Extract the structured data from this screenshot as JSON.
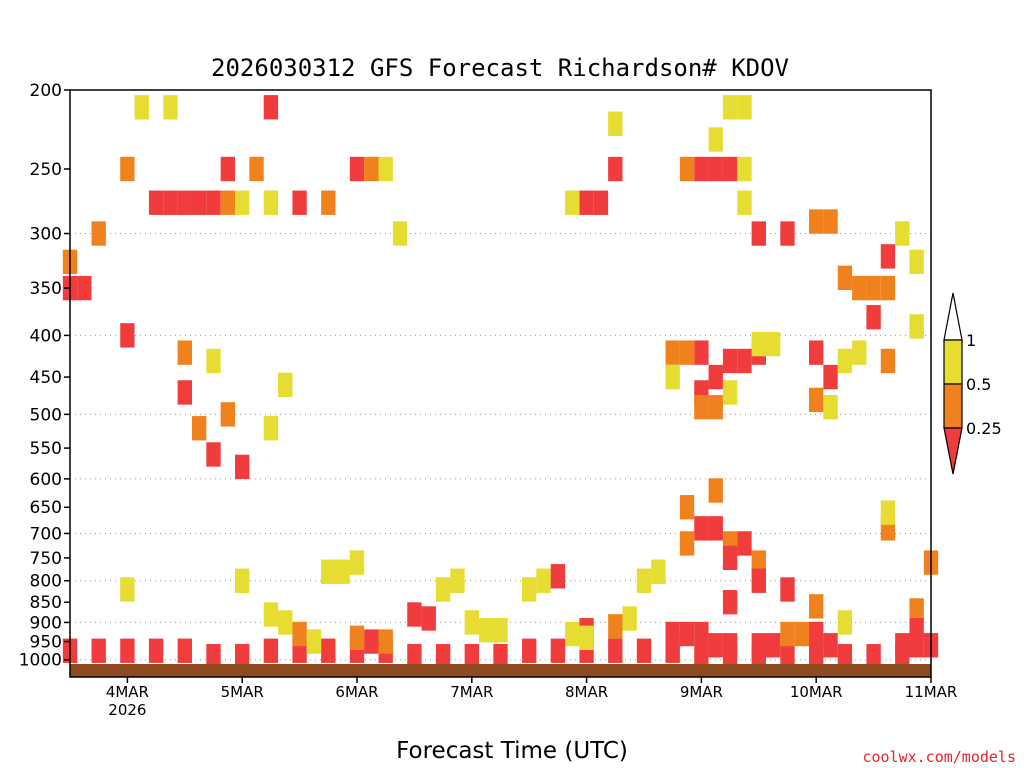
{
  "page": {
    "title": "2026030312 GFS Forecast Richardson# KDOV",
    "xlabel": "Forecast Time (UTC)",
    "credit": "coolwx.com/models"
  },
  "chart_data": {
    "type": "heatmap",
    "title": "2026030312 GFS Forecast Richardson# KDOV",
    "xlabel": "Forecast Time (UTC)",
    "ylabel": "",
    "y_scale": "log",
    "y_inverted": true,
    "ylim": [
      1050,
      200
    ],
    "xlim": [
      "2026-03-03T12Z",
      "2026-03-11T00Z"
    ],
    "x_ticks": [
      {
        "value": "2026-03-04T00Z",
        "label": "4MAR",
        "sublabel": "2026"
      },
      {
        "value": "2026-03-05T00Z",
        "label": "5MAR"
      },
      {
        "value": "2026-03-06T00Z",
        "label": "6MAR"
      },
      {
        "value": "2026-03-07T00Z",
        "label": "7MAR"
      },
      {
        "value": "2026-03-08T00Z",
        "label": "8MAR"
      },
      {
        "value": "2026-03-09T00Z",
        "label": "9MAR"
      },
      {
        "value": "2026-03-10T00Z",
        "label": "10MAR"
      },
      {
        "value": "2026-03-11T00Z",
        "label": "11MAR"
      }
    ],
    "y_ticks": [
      200,
      250,
      300,
      350,
      400,
      450,
      500,
      550,
      600,
      650,
      700,
      750,
      800,
      850,
      900,
      950,
      1000
    ],
    "y_gridlines": [
      300,
      400,
      500,
      600,
      700,
      800,
      900,
      1000
    ],
    "grid": "dotted horizontal",
    "legend": {
      "position": "right",
      "labels": [
        "1",
        "0.5",
        "0.25"
      ],
      "bins": [
        {
          "range": "0.5–1",
          "color": "#e6dc32"
        },
        {
          "range": "0.25–0.5",
          "color": "#f0821e"
        },
        {
          "range": "<0.25",
          "color": "#f03c3c"
        }
      ]
    },
    "colors": {
      "low": "#f03c3c",
      "mid": "#f0821e",
      "high": "#e6dc32",
      "ground": "#8c4a1e"
    },
    "cells": [
      [
        "2026-03-03T12Z",
        975,
        1
      ],
      [
        "2026-03-03T18Z",
        975,
        1
      ],
      [
        "2026-03-04T00Z",
        975,
        1
      ],
      [
        "2026-03-04T06Z",
        975,
        1
      ],
      [
        "2026-03-04T12Z",
        975,
        1
      ],
      [
        "2026-03-04T18Z",
        990,
        1
      ],
      [
        "2026-03-05T00Z",
        990,
        1
      ],
      [
        "2026-03-05T06Z",
        975,
        1
      ],
      [
        "2026-03-05T12Z",
        975,
        1
      ],
      [
        "2026-03-05T18Z",
        975,
        1
      ],
      [
        "2026-03-06T00Z",
        975,
        1
      ],
      [
        "2026-03-06T06Z",
        975,
        1
      ],
      [
        "2026-03-06T12Z",
        990,
        1
      ],
      [
        "2026-03-06T18Z",
        990,
        1
      ],
      [
        "2026-03-07T00Z",
        990,
        1
      ],
      [
        "2026-03-07T06Z",
        990,
        1
      ],
      [
        "2026-03-07T12Z",
        975,
        1
      ],
      [
        "2026-03-07T18Z",
        975,
        1
      ],
      [
        "2026-03-08T00Z",
        975,
        1
      ],
      [
        "2026-03-08T06Z",
        975,
        1
      ],
      [
        "2026-03-08T12Z",
        975,
        1
      ],
      [
        "2026-03-08T18Z",
        975,
        1
      ],
      [
        "2026-03-09T00Z",
        990,
        1
      ],
      [
        "2026-03-09T06Z",
        990,
        1
      ],
      [
        "2026-03-09T12Z",
        990,
        1
      ],
      [
        "2026-03-09T18Z",
        990,
        1
      ],
      [
        "2026-03-10T00Z",
        990,
        1
      ],
      [
        "2026-03-10T06Z",
        990,
        1
      ],
      [
        "2026-03-10T12Z",
        990,
        1
      ],
      [
        "2026-03-10T18Z",
        990,
        1
      ],
      [
        "2026-03-03T12Z",
        350,
        1
      ],
      [
        "2026-03-03T15Z",
        350,
        1
      ],
      [
        "2026-03-03T12Z",
        325,
        2
      ],
      [
        "2026-03-03T18Z",
        300,
        2
      ],
      [
        "2026-03-04T00Z",
        400,
        1
      ],
      [
        "2026-03-04T00Z",
        250,
        2
      ],
      [
        "2026-03-04T06Z",
        275,
        1
      ],
      [
        "2026-03-04T09Z",
        275,
        1
      ],
      [
        "2026-03-04T12Z",
        275,
        1
      ],
      [
        "2026-03-04T15Z",
        275,
        1
      ],
      [
        "2026-03-04T18Z",
        275,
        1
      ],
      [
        "2026-03-04T21Z",
        250,
        1
      ],
      [
        "2026-03-04T21Z",
        275,
        2
      ],
      [
        "2026-03-05T00Z",
        275,
        3
      ],
      [
        "2026-03-05T03Z",
        250,
        2
      ],
      [
        "2026-03-05T06Z",
        275,
        3
      ],
      [
        "2026-03-04T03Z",
        210,
        3
      ],
      [
        "2026-03-04T09Z",
        210,
        3
      ],
      [
        "2026-03-05T06Z",
        210,
        1
      ],
      [
        "2026-03-04T12Z",
        470,
        1
      ],
      [
        "2026-03-04T15Z",
        520,
        2
      ],
      [
        "2026-03-04T18Z",
        560,
        1
      ],
      [
        "2026-03-04T21Z",
        500,
        2
      ],
      [
        "2026-03-05T00Z",
        580,
        1
      ],
      [
        "2026-03-04T12Z",
        420,
        2
      ],
      [
        "2026-03-05T06Z",
        520,
        3
      ],
      [
        "2026-03-05T09Z",
        460,
        3
      ],
      [
        "2026-03-04T18Z",
        430,
        3
      ],
      [
        "2026-03-06T00Z",
        250,
        1
      ],
      [
        "2026-03-06T03Z",
        250,
        2
      ],
      [
        "2026-03-06T06Z",
        250,
        3
      ],
      [
        "2026-03-06T09Z",
        300,
        3
      ],
      [
        "2026-03-05T18Z",
        275,
        2
      ],
      [
        "2026-03-05T12Z",
        275,
        1
      ],
      [
        "2026-03-08T00Z",
        275,
        1
      ],
      [
        "2026-03-08T03Z",
        275,
        1
      ],
      [
        "2026-03-08T06Z",
        250,
        1
      ],
      [
        "2026-03-08T06Z",
        220,
        3
      ],
      [
        "2026-03-07T21Z",
        275,
        3
      ],
      [
        "2026-03-09T00Z",
        250,
        1
      ],
      [
        "2026-03-09T03Z",
        250,
        1
      ],
      [
        "2026-03-09T06Z",
        250,
        1
      ],
      [
        "2026-03-08T21Z",
        250,
        2
      ],
      [
        "2026-03-09T09Z",
        250,
        3
      ],
      [
        "2026-03-09T09Z",
        275,
        3
      ],
      [
        "2026-03-09T03Z",
        230,
        3
      ],
      [
        "2026-03-09T06Z",
        210,
        3
      ],
      [
        "2026-03-09T09Z",
        210,
        3
      ],
      [
        "2026-03-09T12Z",
        300,
        1
      ],
      [
        "2026-03-09T18Z",
        300,
        1
      ],
      [
        "2026-03-10T00Z",
        290,
        2
      ],
      [
        "2026-03-10T03Z",
        290,
        2
      ],
      [
        "2026-03-10T06Z",
        340,
        2
      ],
      [
        "2026-03-10T09Z",
        350,
        2
      ],
      [
        "2026-03-10T12Z",
        350,
        2
      ],
      [
        "2026-03-10T15Z",
        350,
        2
      ],
      [
        "2026-03-10T12Z",
        380,
        1
      ],
      [
        "2026-03-10T15Z",
        320,
        1
      ],
      [
        "2026-03-10T18Z",
        300,
        3
      ],
      [
        "2026-03-10T21Z",
        325,
        3
      ],
      [
        "2026-03-09T00Z",
        420,
        1
      ],
      [
        "2026-03-09T03Z",
        450,
        1
      ],
      [
        "2026-03-09T06Z",
        430,
        1
      ],
      [
        "2026-03-09T09Z",
        430,
        1
      ],
      [
        "2026-03-09T12Z",
        420,
        1
      ],
      [
        "2026-03-08T21Z",
        420,
        2
      ],
      [
        "2026-03-08T18Z",
        420,
        2
      ],
      [
        "2026-03-09T00Z",
        470,
        1
      ],
      [
        "2026-03-09T00Z",
        490,
        2
      ],
      [
        "2026-03-09T03Z",
        490,
        2
      ],
      [
        "2026-03-09T06Z",
        470,
        3
      ],
      [
        "2026-03-08T18Z",
        450,
        3
      ],
      [
        "2026-03-09T12Z",
        410,
        3
      ],
      [
        "2026-03-09T15Z",
        410,
        3
      ],
      [
        "2026-03-10T00Z",
        420,
        1
      ],
      [
        "2026-03-10T03Z",
        450,
        1
      ],
      [
        "2026-03-10T06Z",
        430,
        3
      ],
      [
        "2026-03-10T00Z",
        480,
        2
      ],
      [
        "2026-03-10T03Z",
        490,
        3
      ],
      [
        "2026-03-10T09Z",
        420,
        3
      ],
      [
        "2026-03-10T15Z",
        430,
        2
      ],
      [
        "2026-03-10T21Z",
        390,
        3
      ],
      [
        "2026-03-08T21Z",
        650,
        2
      ],
      [
        "2026-03-09T00Z",
        690,
        1
      ],
      [
        "2026-03-09T03Z",
        690,
        1
      ],
      [
        "2026-03-08T21Z",
        720,
        2
      ],
      [
        "2026-03-09T06Z",
        720,
        2
      ],
      [
        "2026-03-09T09Z",
        720,
        1
      ],
      [
        "2026-03-09T06Z",
        750,
        1
      ],
      [
        "2026-03-09T12Z",
        760,
        2
      ],
      [
        "2026-03-09T12Z",
        800,
        1
      ],
      [
        "2026-03-09T03Z",
        620,
        2
      ],
      [
        "2026-03-09T06Z",
        850,
        1
      ],
      [
        "2026-03-09T18Z",
        820,
        1
      ],
      [
        "2026-03-10T00Z",
        860,
        2
      ],
      [
        "2026-03-10T06Z",
        900,
        3
      ],
      [
        "2026-03-10T15Z",
        690,
        2
      ],
      [
        "2026-03-10T15Z",
        660,
        3
      ],
      [
        "2026-03-10T21Z",
        870,
        2
      ],
      [
        "2026-03-10T21Z",
        920,
        1
      ],
      [
        "2026-03-11T00Z",
        760,
        2
      ],
      [
        "2026-03-08T18Z",
        930,
        1
      ],
      [
        "2026-03-08T21Z",
        930,
        1
      ],
      [
        "2026-03-09T00Z",
        930,
        1
      ],
      [
        "2026-03-09T03Z",
        960,
        1
      ],
      [
        "2026-03-09T06Z",
        960,
        1
      ],
      [
        "2026-03-09T12Z",
        960,
        1
      ],
      [
        "2026-03-09T15Z",
        960,
        1
      ],
      [
        "2026-03-09T18Z",
        930,
        2
      ],
      [
        "2026-03-09T21Z",
        930,
        2
      ],
      [
        "2026-03-10T00Z",
        930,
        1
      ],
      [
        "2026-03-10T03Z",
        960,
        1
      ],
      [
        "2026-03-10T18Z",
        960,
        1
      ],
      [
        "2026-03-10T21Z",
        960,
        1
      ],
      [
        "2026-03-11T00Z",
        960,
        1
      ],
      [
        "2026-03-04T00Z",
        820,
        3
      ],
      [
        "2026-03-05T00Z",
        800,
        3
      ],
      [
        "2026-03-05T06Z",
        880,
        3
      ],
      [
        "2026-03-05T09Z",
        900,
        3
      ],
      [
        "2026-03-05T12Z",
        930,
        2
      ],
      [
        "2026-03-05T15Z",
        950,
        3
      ],
      [
        "2026-03-05T18Z",
        780,
        3
      ],
      [
        "2026-03-05T21Z",
        780,
        3
      ],
      [
        "2026-03-06T00Z",
        760,
        3
      ],
      [
        "2026-03-06T00Z",
        940,
        2
      ],
      [
        "2026-03-06T03Z",
        950,
        1
      ],
      [
        "2026-03-06T06Z",
        950,
        2
      ],
      [
        "2026-03-06T12Z",
        880,
        1
      ],
      [
        "2026-03-06T15Z",
        890,
        1
      ],
      [
        "2026-03-06T18Z",
        820,
        3
      ],
      [
        "2026-03-06T21Z",
        800,
        3
      ],
      [
        "2026-03-07T00Z",
        900,
        3
      ],
      [
        "2026-03-07T03Z",
        920,
        3
      ],
      [
        "2026-03-07T06Z",
        920,
        3
      ],
      [
        "2026-03-07T12Z",
        820,
        3
      ],
      [
        "2026-03-07T15Z",
        800,
        3
      ],
      [
        "2026-03-07T18Z",
        790,
        1
      ],
      [
        "2026-03-07T21Z",
        930,
        3
      ],
      [
        "2026-03-08T00Z",
        920,
        1
      ],
      [
        "2026-03-08T00Z",
        940,
        3
      ],
      [
        "2026-03-08T06Z",
        910,
        2
      ],
      [
        "2026-03-08T09Z",
        890,
        3
      ],
      [
        "2026-03-08T12Z",
        800,
        3
      ],
      [
        "2026-03-08T15Z",
        780,
        3
      ]
    ]
  }
}
